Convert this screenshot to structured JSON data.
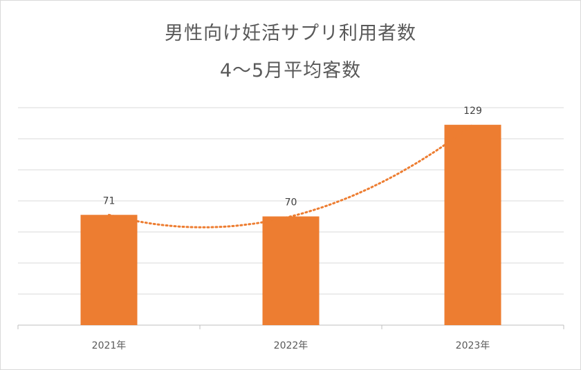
{
  "chart_data": {
    "type": "bar",
    "title": "男性向け妊活サプリ利用者数",
    "subtitle": "4～5月平均客数",
    "categories": [
      "2021年",
      "2022年",
      "2023年"
    ],
    "values": [
      71,
      70,
      129
    ],
    "data_labels": [
      "71",
      "70",
      "129"
    ],
    "ylim": [
      0,
      140
    ],
    "grid": true,
    "trendline": "polynomial",
    "xlabel": "",
    "ylabel": "",
    "colors": {
      "bar": "#ed7d31",
      "trendline": "#ed7d31",
      "grid": "#d9d9d9",
      "axis": "#bfbfbf"
    }
  }
}
